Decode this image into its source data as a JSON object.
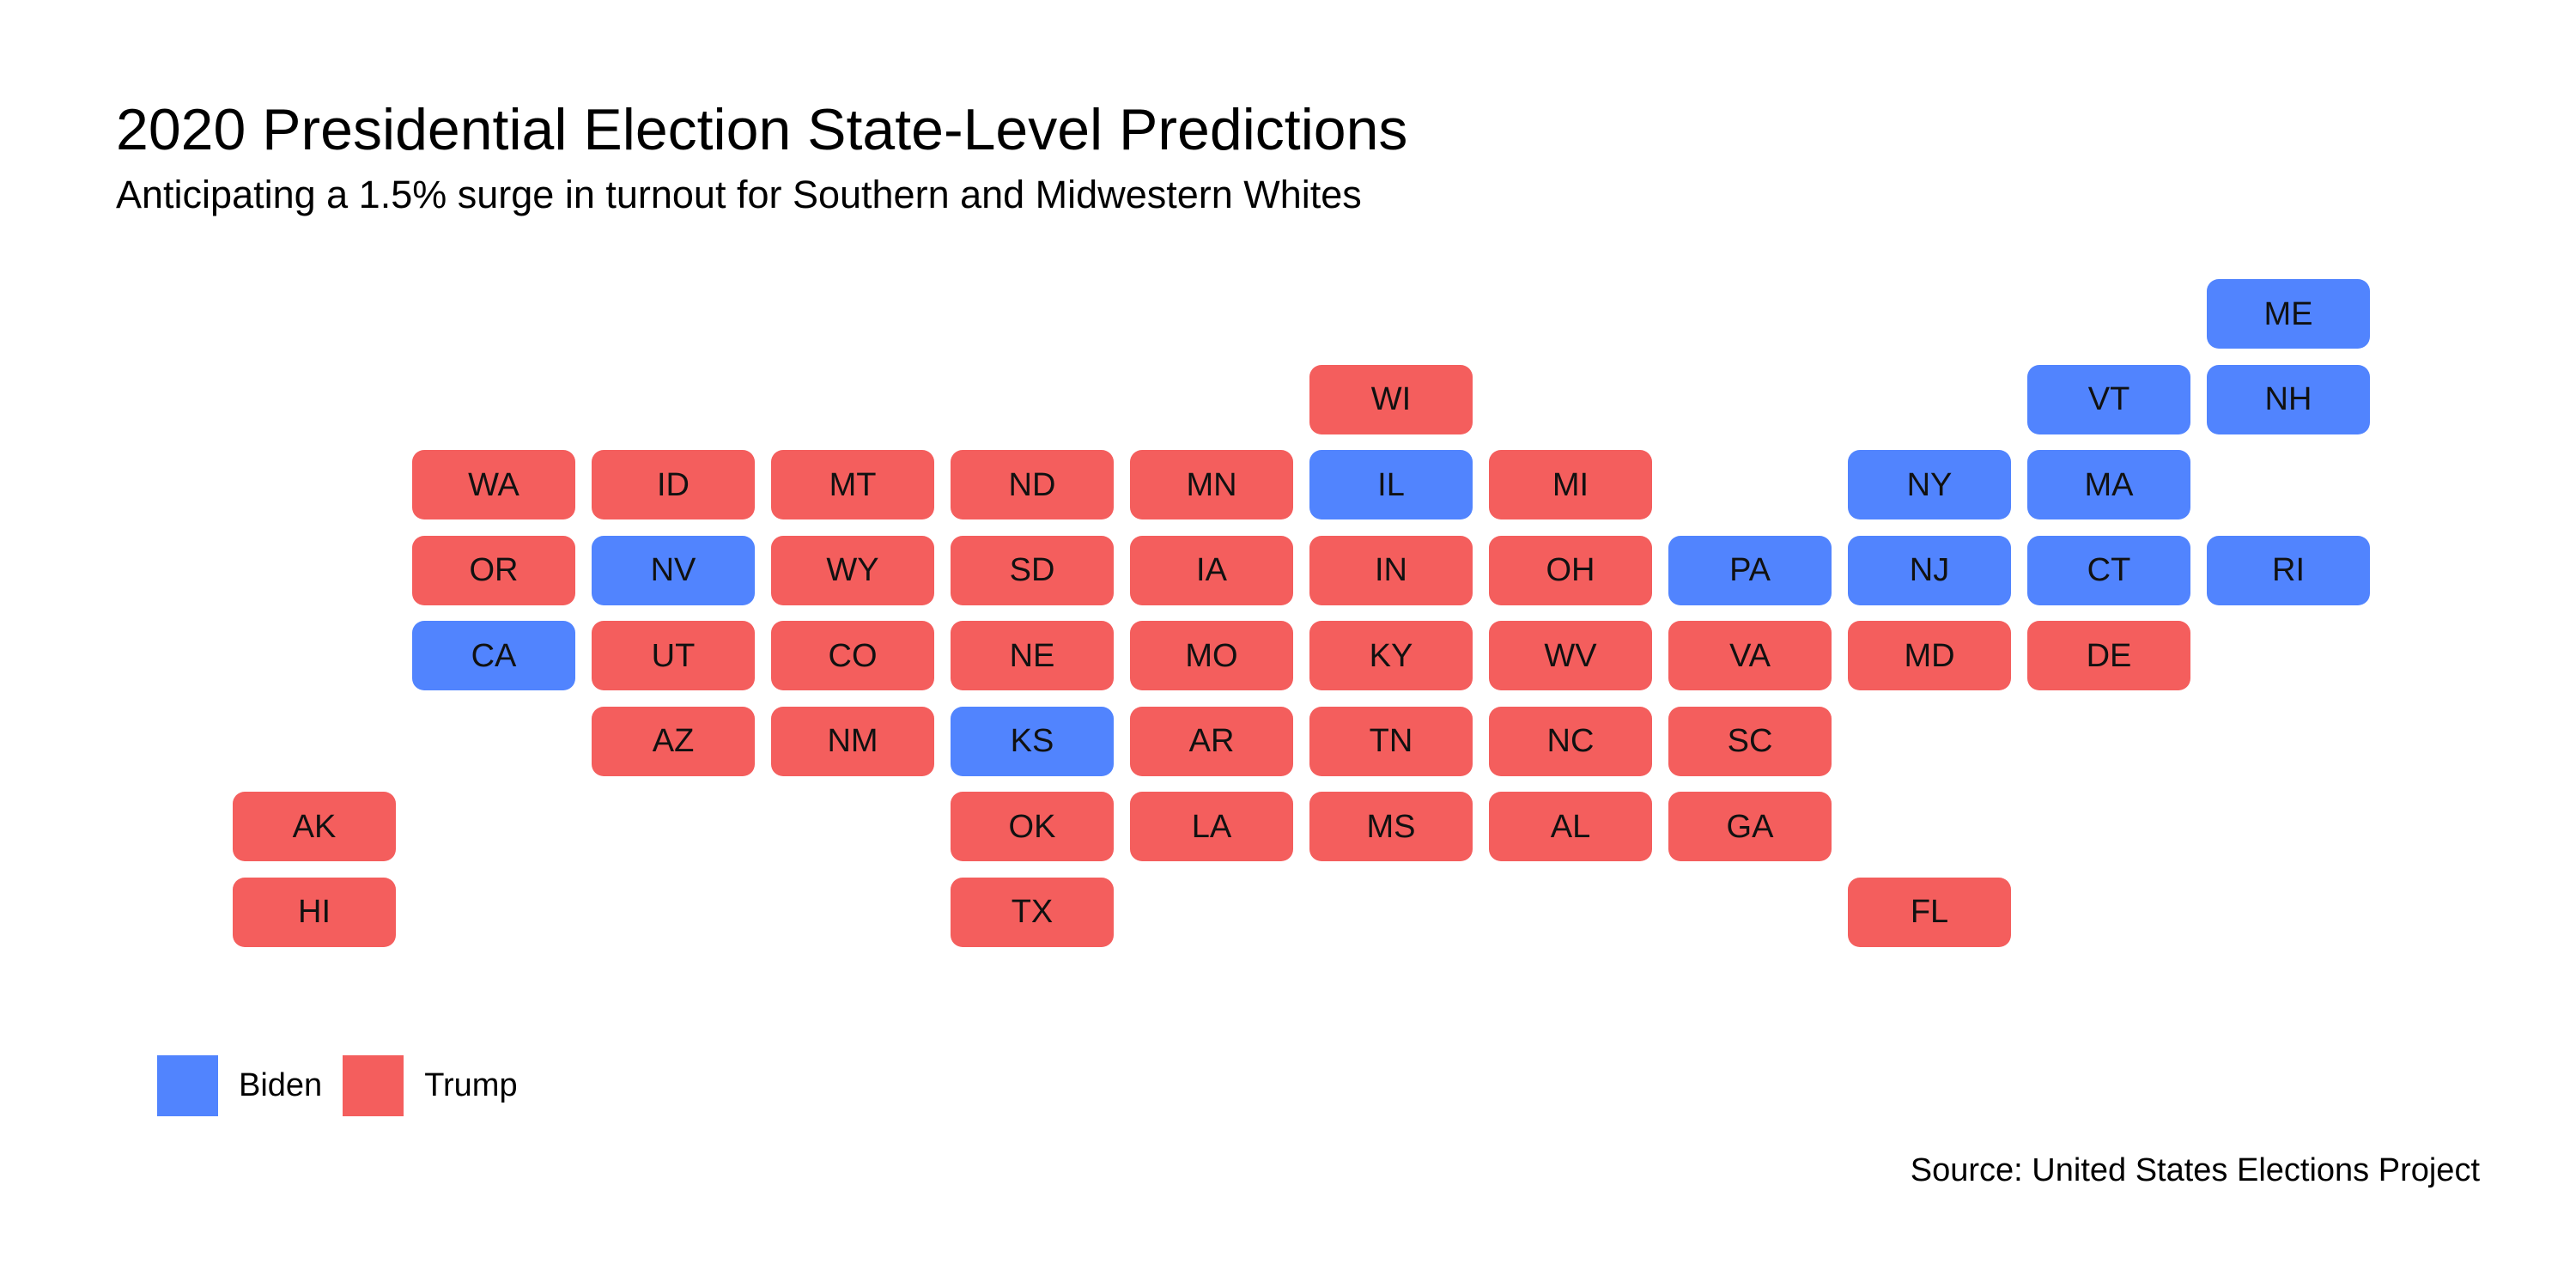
{
  "title": "2020 Presidential Election State-Level Predictions",
  "subtitle": "Anticipating a 1.5% surge in turnout for Southern and Midwestern Whites",
  "caption": "Source: United States Elections Project",
  "colors": {
    "Biden": "#5184FE",
    "Trump": "#F45E5D"
  },
  "legend": [
    {
      "label": "Biden",
      "party": "Biden"
    },
    {
      "label": "Trump",
      "party": "Trump"
    }
  ],
  "chart_data": {
    "type": "tile-grid map",
    "categories": [
      "Biden",
      "Trump"
    ],
    "states": [
      {
        "abbr": "ME",
        "col": 11,
        "row": 0,
        "winner": "Biden"
      },
      {
        "abbr": "WI",
        "col": 6,
        "row": 1,
        "winner": "Trump"
      },
      {
        "abbr": "VT",
        "col": 10,
        "row": 1,
        "winner": "Biden"
      },
      {
        "abbr": "NH",
        "col": 11,
        "row": 1,
        "winner": "Biden"
      },
      {
        "abbr": "WA",
        "col": 1,
        "row": 2,
        "winner": "Trump"
      },
      {
        "abbr": "ID",
        "col": 2,
        "row": 2,
        "winner": "Trump"
      },
      {
        "abbr": "MT",
        "col": 3,
        "row": 2,
        "winner": "Trump"
      },
      {
        "abbr": "ND",
        "col": 4,
        "row": 2,
        "winner": "Trump"
      },
      {
        "abbr": "MN",
        "col": 5,
        "row": 2,
        "winner": "Trump"
      },
      {
        "abbr": "IL",
        "col": 6,
        "row": 2,
        "winner": "Biden"
      },
      {
        "abbr": "MI",
        "col": 7,
        "row": 2,
        "winner": "Trump"
      },
      {
        "abbr": "NY",
        "col": 9,
        "row": 2,
        "winner": "Biden"
      },
      {
        "abbr": "MA",
        "col": 10,
        "row": 2,
        "winner": "Biden"
      },
      {
        "abbr": "OR",
        "col": 1,
        "row": 3,
        "winner": "Trump"
      },
      {
        "abbr": "NV",
        "col": 2,
        "row": 3,
        "winner": "Biden"
      },
      {
        "abbr": "WY",
        "col": 3,
        "row": 3,
        "winner": "Trump"
      },
      {
        "abbr": "SD",
        "col": 4,
        "row": 3,
        "winner": "Trump"
      },
      {
        "abbr": "IA",
        "col": 5,
        "row": 3,
        "winner": "Trump"
      },
      {
        "abbr": "IN",
        "col": 6,
        "row": 3,
        "winner": "Trump"
      },
      {
        "abbr": "OH",
        "col": 7,
        "row": 3,
        "winner": "Trump"
      },
      {
        "abbr": "PA",
        "col": 8,
        "row": 3,
        "winner": "Biden"
      },
      {
        "abbr": "NJ",
        "col": 9,
        "row": 3,
        "winner": "Biden"
      },
      {
        "abbr": "CT",
        "col": 10,
        "row": 3,
        "winner": "Biden"
      },
      {
        "abbr": "RI",
        "col": 11,
        "row": 3,
        "winner": "Biden"
      },
      {
        "abbr": "CA",
        "col": 1,
        "row": 4,
        "winner": "Biden"
      },
      {
        "abbr": "UT",
        "col": 2,
        "row": 4,
        "winner": "Trump"
      },
      {
        "abbr": "CO",
        "col": 3,
        "row": 4,
        "winner": "Trump"
      },
      {
        "abbr": "NE",
        "col": 4,
        "row": 4,
        "winner": "Trump"
      },
      {
        "abbr": "MO",
        "col": 5,
        "row": 4,
        "winner": "Trump"
      },
      {
        "abbr": "KY",
        "col": 6,
        "row": 4,
        "winner": "Trump"
      },
      {
        "abbr": "WV",
        "col": 7,
        "row": 4,
        "winner": "Trump"
      },
      {
        "abbr": "VA",
        "col": 8,
        "row": 4,
        "winner": "Trump"
      },
      {
        "abbr": "MD",
        "col": 9,
        "row": 4,
        "winner": "Trump"
      },
      {
        "abbr": "DE",
        "col": 10,
        "row": 4,
        "winner": "Trump"
      },
      {
        "abbr": "AZ",
        "col": 2,
        "row": 5,
        "winner": "Trump"
      },
      {
        "abbr": "NM",
        "col": 3,
        "row": 5,
        "winner": "Trump"
      },
      {
        "abbr": "KS",
        "col": 4,
        "row": 5,
        "winner": "Biden"
      },
      {
        "abbr": "AR",
        "col": 5,
        "row": 5,
        "winner": "Trump"
      },
      {
        "abbr": "TN",
        "col": 6,
        "row": 5,
        "winner": "Trump"
      },
      {
        "abbr": "NC",
        "col": 7,
        "row": 5,
        "winner": "Trump"
      },
      {
        "abbr": "SC",
        "col": 8,
        "row": 5,
        "winner": "Trump"
      },
      {
        "abbr": "AK",
        "col": 0,
        "row": 6,
        "winner": "Trump"
      },
      {
        "abbr": "OK",
        "col": 4,
        "row": 6,
        "winner": "Trump"
      },
      {
        "abbr": "LA",
        "col": 5,
        "row": 6,
        "winner": "Trump"
      },
      {
        "abbr": "MS",
        "col": 6,
        "row": 6,
        "winner": "Trump"
      },
      {
        "abbr": "AL",
        "col": 7,
        "row": 6,
        "winner": "Trump"
      },
      {
        "abbr": "GA",
        "col": 8,
        "row": 6,
        "winner": "Trump"
      },
      {
        "abbr": "HI",
        "col": 0,
        "row": 7,
        "winner": "Trump"
      },
      {
        "abbr": "TX",
        "col": 4,
        "row": 7,
        "winner": "Trump"
      },
      {
        "abbr": "FL",
        "col": 9,
        "row": 7,
        "winner": "Trump"
      }
    ]
  }
}
